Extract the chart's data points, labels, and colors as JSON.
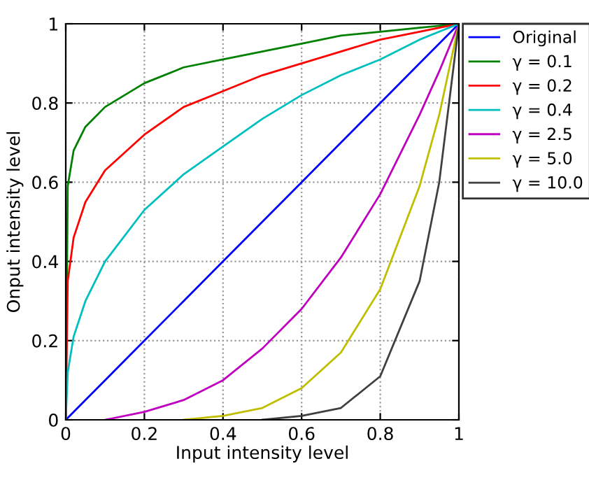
{
  "chart_data": {
    "type": "line",
    "xlabel": "Input intensity level",
    "ylabel": "Onput intensity level",
    "x": [
      0,
      0.005,
      0.02,
      0.05,
      0.1,
      0.2,
      0.3,
      0.4,
      0.5,
      0.6,
      0.7,
      0.8,
      0.9,
      0.95,
      1
    ],
    "series": [
      {
        "name": "Original",
        "color": "#0000ff",
        "values": [
          0,
          0.005,
          0.02,
          0.05,
          0.1,
          0.2,
          0.3,
          0.4,
          0.5,
          0.6,
          0.7,
          0.8,
          0.9,
          0.95,
          1
        ]
      },
      {
        "name": "γ = 0.1",
        "color": "#008000",
        "values": [
          0,
          0.59,
          0.68,
          0.74,
          0.79,
          0.85,
          0.89,
          0.91,
          0.93,
          0.95,
          0.97,
          0.98,
          0.99,
          0.995,
          1
        ]
      },
      {
        "name": "γ = 0.2",
        "color": "#ff0000",
        "values": [
          0,
          0.35,
          0.46,
          0.55,
          0.63,
          0.72,
          0.79,
          0.83,
          0.87,
          0.9,
          0.93,
          0.96,
          0.98,
          0.99,
          1
        ]
      },
      {
        "name": "γ = 0.4",
        "color": "#00bfbf",
        "values": [
          0,
          0.12,
          0.21,
          0.3,
          0.4,
          0.53,
          0.62,
          0.69,
          0.76,
          0.82,
          0.87,
          0.91,
          0.96,
          0.98,
          1
        ]
      },
      {
        "name": "γ = 2.5",
        "color": "#bf00bf",
        "x": [
          0.1,
          0.2,
          0.3,
          0.4,
          0.5,
          0.6,
          0.7,
          0.8,
          0.9,
          0.95,
          1
        ],
        "values": [
          0,
          0.02,
          0.05,
          0.1,
          0.18,
          0.28,
          0.41,
          0.57,
          0.77,
          0.88,
          1
        ]
      },
      {
        "name": "γ = 5.0",
        "color": "#bfbf00",
        "x": [
          0.3,
          0.4,
          0.5,
          0.6,
          0.7,
          0.8,
          0.9,
          0.95,
          1
        ],
        "values": [
          0,
          0.01,
          0.03,
          0.08,
          0.17,
          0.33,
          0.59,
          0.77,
          1
        ]
      },
      {
        "name": "γ = 10.0",
        "color": "#404040",
        "x": [
          0.5,
          0.6,
          0.7,
          0.8,
          0.9,
          0.95,
          1
        ],
        "values": [
          0,
          0.01,
          0.03,
          0.11,
          0.35,
          0.6,
          1
        ]
      }
    ],
    "xlim": [
      0,
      1
    ],
    "ylim": [
      0,
      1
    ],
    "xticks": [
      0,
      0.2,
      0.4,
      0.6,
      0.8,
      1
    ],
    "yticks": [
      0,
      0.2,
      0.4,
      0.6,
      0.8,
      1
    ],
    "grid": true,
    "legend": "top right",
    "line_style": "solid",
    "marker": "none"
  }
}
